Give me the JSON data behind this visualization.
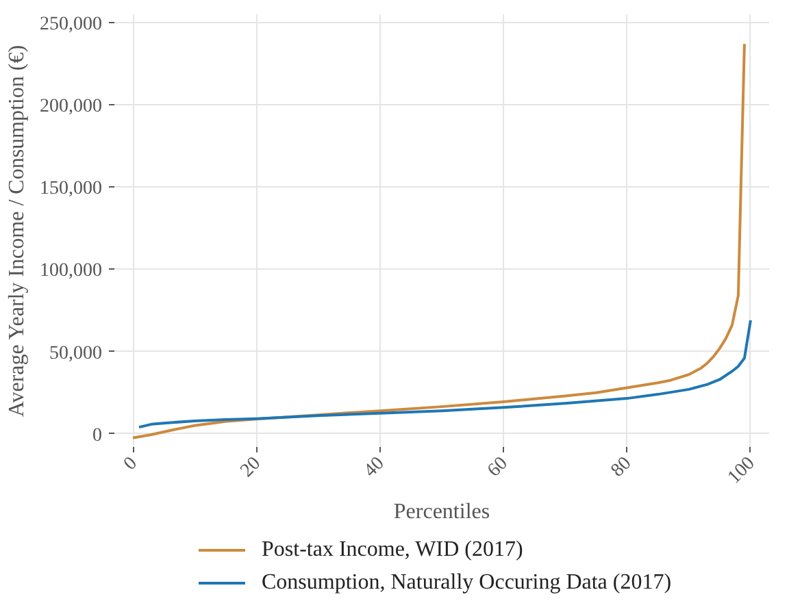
{
  "chart_data": {
    "type": "line",
    "xlabel": "Percentiles",
    "ylabel": "Average Yearly Income / Consumption (€)",
    "xlim": [
      -3,
      103
    ],
    "ylim": [
      -8000,
      255000
    ],
    "xticks": [
      0,
      20,
      40,
      60,
      80,
      100
    ],
    "yticks": [
      {
        "value": 0,
        "label": "0"
      },
      {
        "value": 50000,
        "label": "50,000"
      },
      {
        "value": 100000,
        "label": "100,000"
      },
      {
        "value": 150000,
        "label": "150,000"
      },
      {
        "value": 200000,
        "label": "200,000"
      },
      {
        "value": 250000,
        "label": "250,000"
      }
    ],
    "grid": true,
    "legend": "bottom",
    "series": [
      {
        "name": "Post-tax Income, WID (2017)",
        "color": "#cc8a3e",
        "x": [
          0,
          3,
          6,
          10,
          15,
          20,
          30,
          40,
          50,
          60,
          70,
          75,
          80,
          85,
          87,
          90,
          92,
          93,
          94,
          95,
          96,
          97,
          98,
          99
        ],
        "values": [
          -2500,
          -500,
          2000,
          5000,
          7500,
          9000,
          11500,
          14000,
          16500,
          19500,
          23000,
          25000,
          28000,
          31000,
          32500,
          36000,
          40000,
          43000,
          47000,
          52000,
          58000,
          66000,
          84000,
          237000
        ]
      },
      {
        "name": "Consumption, Naturally Occuring Data (2017)",
        "color": "#1f77b4",
        "x": [
          1,
          3,
          5,
          10,
          15,
          20,
          30,
          40,
          50,
          60,
          70,
          80,
          85,
          90,
          93,
          95,
          97,
          98,
          99,
          100
        ],
        "values": [
          4000,
          5800,
          6500,
          7800,
          8600,
          9200,
          11000,
          12500,
          14000,
          16000,
          18500,
          21500,
          24000,
          27000,
          30000,
          33000,
          38000,
          41000,
          46000,
          69000
        ]
      }
    ]
  }
}
